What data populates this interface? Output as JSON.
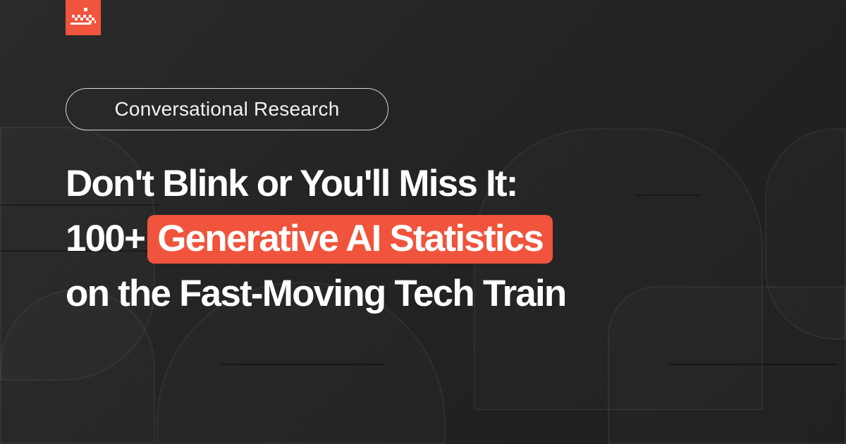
{
  "brand": {
    "logo_icon": "pixel-crown-logo",
    "accent_color": "#F0543C"
  },
  "category": "Conversational Research",
  "title": {
    "line1": "Don't Blink or You'll Miss It:",
    "line2_prefix": "100+",
    "line2_highlight": "Generative AI Statistics",
    "line3": "on the Fast-Moving Tech Train"
  }
}
